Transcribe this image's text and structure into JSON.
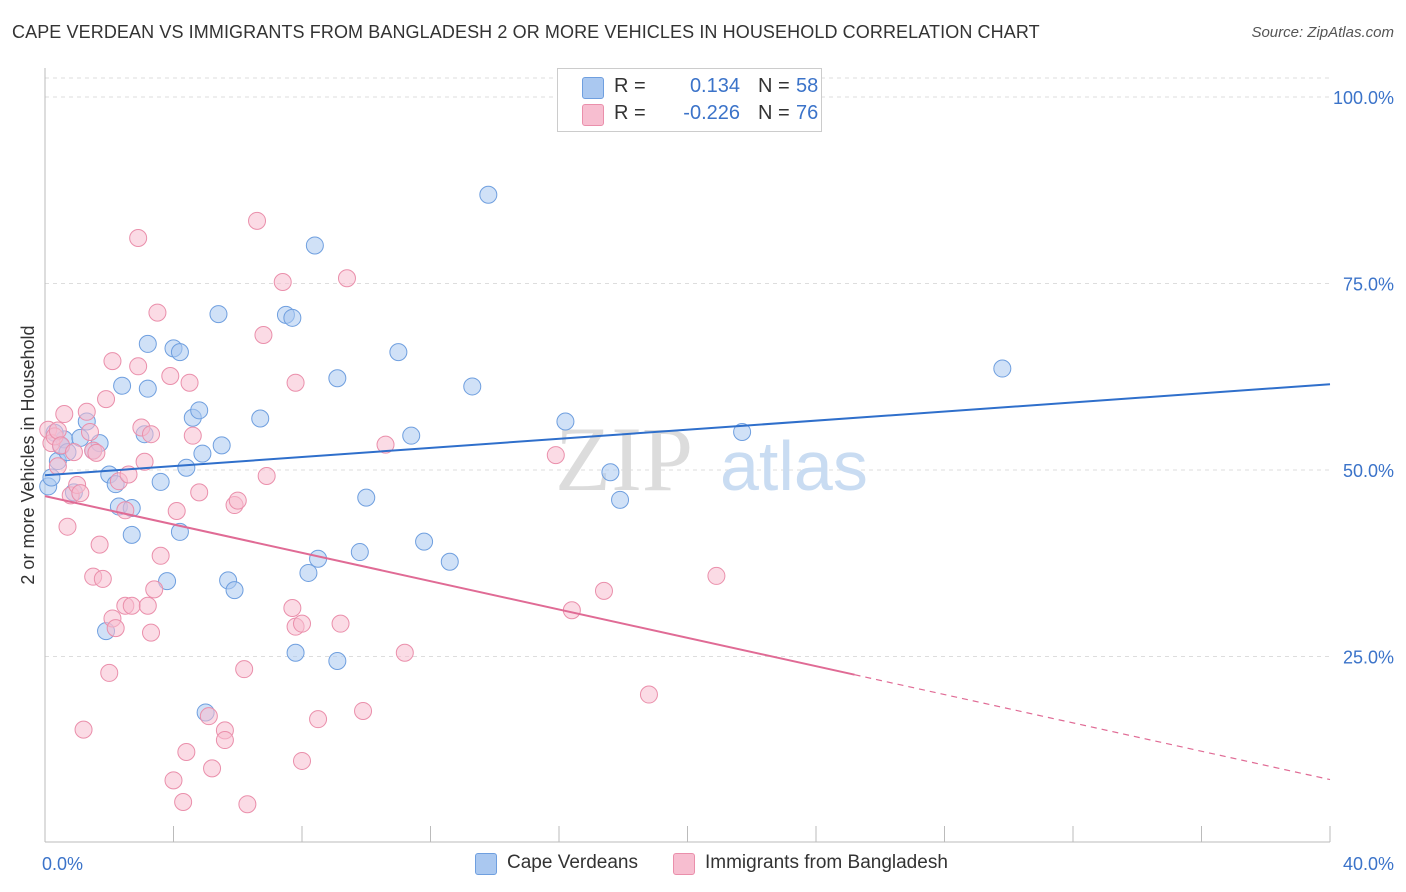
{
  "title": "CAPE VERDEAN VS IMMIGRANTS FROM BANGLADESH 2 OR MORE VEHICLES IN HOUSEHOLD CORRELATION CHART",
  "source": "Source: ZipAtlas.com",
  "watermark": {
    "zip": "ZIP",
    "atlas": "atlas"
  },
  "legend": {
    "r_label": "R =",
    "n_label": "N =",
    "rows": [
      {
        "r": "0.134",
        "n": "58"
      },
      {
        "r": "-0.226",
        "n": "76"
      }
    ]
  },
  "colors": {
    "blue_fill": "#aac8f0",
    "blue_stroke": "#6f9fdf",
    "blue_line": "#2f6fcb",
    "pink_fill": "#f7bed0",
    "pink_stroke": "#ea8fab",
    "pink_line": "#e06b95",
    "tick_label": "#3b73c9",
    "grid": "#dddddd"
  },
  "chart_data": {
    "type": "scatter",
    "ylabel": "2 or more Vehicles in Household",
    "xlim": [
      0,
      40
    ],
    "ylim": [
      0,
      100
    ],
    "x_tick_labels": [
      "0.0%",
      "40.0%"
    ],
    "y_ticks": [
      {
        "value": 25,
        "label": "25.0%"
      },
      {
        "value": 50,
        "label": "50.0%"
      },
      {
        "value": 75,
        "label": "75.0%"
      },
      {
        "value": 100,
        "label": "100.0%"
      }
    ],
    "legend_position": "bottom",
    "series": [
      {
        "name": "Cape Verdeans",
        "r": 0.134,
        "n": 58,
        "trend": {
          "x0": 0,
          "y0": 49.3,
          "x1": 40,
          "y1": 61.5,
          "dashed_from": null
        },
        "points": [
          [
            0.1,
            47.8
          ],
          [
            0.4,
            51.2
          ],
          [
            0.5,
            53.2
          ],
          [
            0.6,
            54.1
          ],
          [
            0.7,
            52.4
          ],
          [
            0.9,
            47.0
          ],
          [
            1.1,
            54.3
          ],
          [
            1.3,
            56.5
          ],
          [
            1.5,
            52.6
          ],
          [
            1.7,
            53.6
          ],
          [
            1.9,
            28.4
          ],
          [
            2.0,
            49.4
          ],
          [
            2.2,
            48.1
          ],
          [
            2.3,
            45.1
          ],
          [
            2.4,
            61.3
          ],
          [
            2.7,
            41.3
          ],
          [
            2.7,
            44.9
          ],
          [
            3.1,
            54.8
          ],
          [
            3.2,
            60.9
          ],
          [
            3.2,
            66.9
          ],
          [
            3.6,
            48.4
          ],
          [
            3.8,
            35.1
          ],
          [
            4.0,
            66.3
          ],
          [
            4.2,
            65.8
          ],
          [
            4.2,
            41.7
          ],
          [
            4.4,
            50.3
          ],
          [
            4.6,
            57.0
          ],
          [
            4.8,
            58.0
          ],
          [
            4.9,
            52.2
          ],
          [
            5.0,
            17.5
          ],
          [
            5.4,
            70.9
          ],
          [
            5.5,
            53.3
          ],
          [
            5.7,
            35.2
          ],
          [
            5.9,
            33.9
          ],
          [
            6.7,
            56.9
          ],
          [
            7.5,
            70.8
          ],
          [
            7.7,
            70.4
          ],
          [
            7.8,
            25.5
          ],
          [
            8.2,
            36.2
          ],
          [
            8.4,
            80.1
          ],
          [
            8.5,
            38.1
          ],
          [
            9.1,
            62.3
          ],
          [
            9.1,
            24.4
          ],
          [
            9.8,
            39.0
          ],
          [
            10.0,
            46.3
          ],
          [
            11.0,
            65.8
          ],
          [
            11.4,
            54.6
          ],
          [
            11.8,
            40.4
          ],
          [
            12.6,
            37.7
          ],
          [
            13.3,
            61.2
          ],
          [
            13.8,
            86.9
          ],
          [
            16.2,
            56.5
          ],
          [
            17.6,
            49.7
          ],
          [
            17.9,
            46.0
          ],
          [
            21.7,
            55.1
          ],
          [
            29.8,
            63.6
          ],
          [
            0.2,
            49.0
          ],
          [
            0.3,
            55.0
          ]
        ]
      },
      {
        "name": "Immigrants from Bangladesh",
        "r": -0.226,
        "n": 76,
        "trend": {
          "x0": 0,
          "y0": 46.5,
          "x1": 40,
          "y1": 8.5,
          "dashed_from": 25.2
        },
        "points": [
          [
            0.1,
            55.4
          ],
          [
            0.2,
            53.6
          ],
          [
            0.3,
            54.5
          ],
          [
            0.4,
            55.3
          ],
          [
            0.5,
            53.3
          ],
          [
            0.6,
            57.5
          ],
          [
            0.7,
            42.4
          ],
          [
            0.8,
            46.6
          ],
          [
            0.9,
            52.4
          ],
          [
            1.0,
            48.0
          ],
          [
            1.2,
            15.2
          ],
          [
            1.3,
            57.8
          ],
          [
            1.4,
            55.1
          ],
          [
            1.5,
            52.6
          ],
          [
            1.5,
            35.7
          ],
          [
            1.6,
            52.3
          ],
          [
            1.7,
            40.0
          ],
          [
            1.8,
            35.4
          ],
          [
            1.9,
            59.5
          ],
          [
            2.0,
            22.8
          ],
          [
            2.1,
            64.6
          ],
          [
            2.1,
            30.1
          ],
          [
            2.2,
            28.8
          ],
          [
            2.3,
            48.5
          ],
          [
            2.5,
            44.6
          ],
          [
            2.5,
            31.8
          ],
          [
            2.6,
            49.4
          ],
          [
            2.7,
            31.8
          ],
          [
            2.9,
            63.9
          ],
          [
            2.9,
            81.1
          ],
          [
            3.0,
            55.7
          ],
          [
            3.1,
            51.1
          ],
          [
            3.2,
            31.8
          ],
          [
            3.3,
            54.8
          ],
          [
            3.3,
            28.2
          ],
          [
            3.4,
            34.0
          ],
          [
            3.5,
            71.1
          ],
          [
            3.6,
            38.5
          ],
          [
            3.9,
            62.6
          ],
          [
            4.0,
            8.4
          ],
          [
            4.1,
            44.5
          ],
          [
            4.3,
            5.5
          ],
          [
            4.4,
            12.2
          ],
          [
            4.5,
            61.7
          ],
          [
            4.6,
            54.6
          ],
          [
            4.8,
            47.0
          ],
          [
            5.1,
            17.0
          ],
          [
            5.2,
            10.0
          ],
          [
            5.6,
            15.1
          ],
          [
            5.6,
            13.8
          ],
          [
            5.9,
            45.3
          ],
          [
            6.0,
            45.9
          ],
          [
            6.2,
            23.3
          ],
          [
            6.3,
            5.2
          ],
          [
            6.6,
            83.4
          ],
          [
            6.8,
            68.1
          ],
          [
            6.9,
            49.2
          ],
          [
            7.4,
            75.2
          ],
          [
            7.7,
            31.5
          ],
          [
            7.8,
            61.7
          ],
          [
            7.8,
            29.0
          ],
          [
            8.0,
            29.4
          ],
          [
            8.0,
            11.0
          ],
          [
            8.5,
            16.6
          ],
          [
            9.2,
            29.4
          ],
          [
            9.4,
            75.7
          ],
          [
            9.9,
            17.7
          ],
          [
            10.6,
            53.4
          ],
          [
            11.2,
            25.5
          ],
          [
            15.9,
            52.0
          ],
          [
            16.4,
            31.2
          ],
          [
            17.4,
            33.8
          ],
          [
            18.8,
            19.9
          ],
          [
            20.9,
            35.8
          ],
          [
            0.4,
            50.5
          ],
          [
            1.1,
            46.9
          ]
        ]
      }
    ]
  }
}
